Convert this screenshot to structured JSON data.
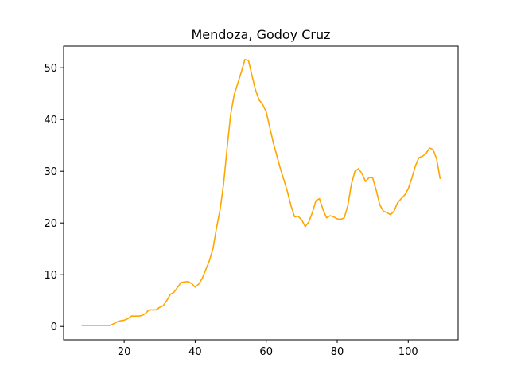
{
  "chart_data": {
    "type": "line",
    "title": "Mendoza, Godoy Cruz",
    "x": [
      8,
      9,
      10,
      11,
      12,
      13,
      14,
      15,
      16,
      17,
      18,
      19,
      20,
      21,
      22,
      23,
      24,
      25,
      26,
      27,
      28,
      29,
      30,
      31,
      32,
      33,
      34,
      35,
      36,
      37,
      38,
      39,
      40,
      41,
      42,
      43,
      44,
      45,
      46,
      47,
      48,
      49,
      50,
      51,
      52,
      53,
      54,
      55,
      56,
      57,
      58,
      59,
      60,
      61,
      62,
      63,
      64,
      65,
      66,
      67,
      68,
      69,
      70,
      71,
      72,
      73,
      74,
      75,
      76,
      77,
      78,
      79,
      80,
      81,
      82,
      83,
      84,
      85,
      86,
      87,
      88,
      89,
      90,
      91,
      92,
      93,
      94,
      95,
      96,
      97,
      98,
      99,
      100,
      101,
      102,
      103,
      104,
      105,
      106,
      107,
      108,
      109
    ],
    "series": [
      {
        "color": "#ffa500",
        "values": [
          0.2,
          0.2,
          0.2,
          0.2,
          0.2,
          0.2,
          0.2,
          0.2,
          0.2,
          0.5,
          0.9,
          1.1,
          1.2,
          1.5,
          2.0,
          2.0,
          2.0,
          2.1,
          2.5,
          3.2,
          3.2,
          3.2,
          3.7,
          4.0,
          5.0,
          6.2,
          6.6,
          7.5,
          8.5,
          8.6,
          8.7,
          8.3,
          7.6,
          8.2,
          9.3,
          11.0,
          12.7,
          15.0,
          19.0,
          22.5,
          27.5,
          34.5,
          41.0,
          44.8,
          47.0,
          49.2,
          51.6,
          51.4,
          48.5,
          45.7,
          43.8,
          42.9,
          41.5,
          38.5,
          35.5,
          33.0,
          30.5,
          28.3,
          26.0,
          23.3,
          21.2,
          21.3,
          20.6,
          19.3,
          20.2,
          22.0,
          24.3,
          24.7,
          22.6,
          21.0,
          21.4,
          21.2,
          20.8,
          20.7,
          21.0,
          23.4,
          27.5,
          30.0,
          30.5,
          29.5,
          28.0,
          28.8,
          28.7,
          26.3,
          23.5,
          22.3,
          22.0,
          21.6,
          22.3,
          23.9,
          24.7,
          25.4,
          26.6,
          28.6,
          31.0,
          32.6,
          32.9,
          33.4,
          34.5,
          34.2,
          32.4,
          28.5
        ]
      }
    ],
    "xlim": [
      2.95,
      114.05
    ],
    "ylim": [
      -2.58,
      54.18
    ],
    "xticks": [
      20,
      40,
      60,
      80,
      100
    ],
    "yticks": [
      0,
      10,
      20,
      30,
      40,
      50
    ]
  }
}
